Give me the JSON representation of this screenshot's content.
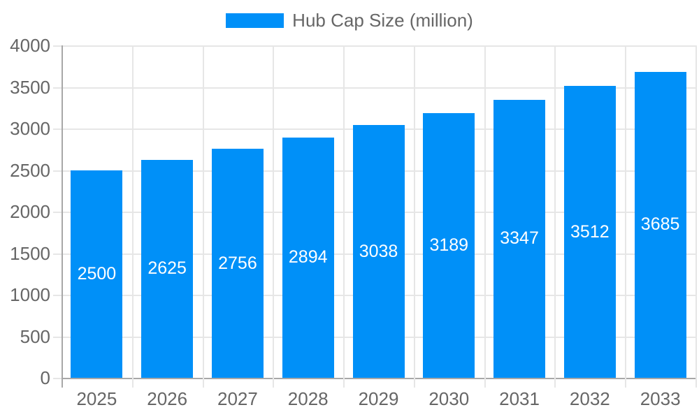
{
  "chart_data": {
    "type": "bar",
    "legend_label": "Hub Cap Size (million)",
    "legend_position": "top",
    "categories": [
      "2025",
      "2026",
      "2027",
      "2028",
      "2029",
      "2030",
      "2031",
      "2032",
      "2033"
    ],
    "series": [
      {
        "name": "Hub Cap Size (million)",
        "values": [
          2500,
          2625,
          2756,
          2894,
          3038,
          3189,
          3347,
          3512,
          3685
        ]
      }
    ],
    "value_labels": [
      "2500",
      "2625",
      "2756",
      "2894",
      "3038",
      "3189",
      "3347",
      "3512",
      "3685"
    ],
    "xlabel": "",
    "ylabel": "",
    "ylim": [
      0,
      4000
    ],
    "ytick_step": 500,
    "ytick_labels": [
      "0",
      "500",
      "1000",
      "1500",
      "2000",
      "2500",
      "3000",
      "3500",
      "4000"
    ],
    "grid": true,
    "colors": {
      "bar": "#0090f8",
      "text": "#666666",
      "grid_line": "#e6e6e6",
      "axis_line": "#a8a8a8",
      "value_label": "#ffffff",
      "background": "#ffffff"
    }
  }
}
